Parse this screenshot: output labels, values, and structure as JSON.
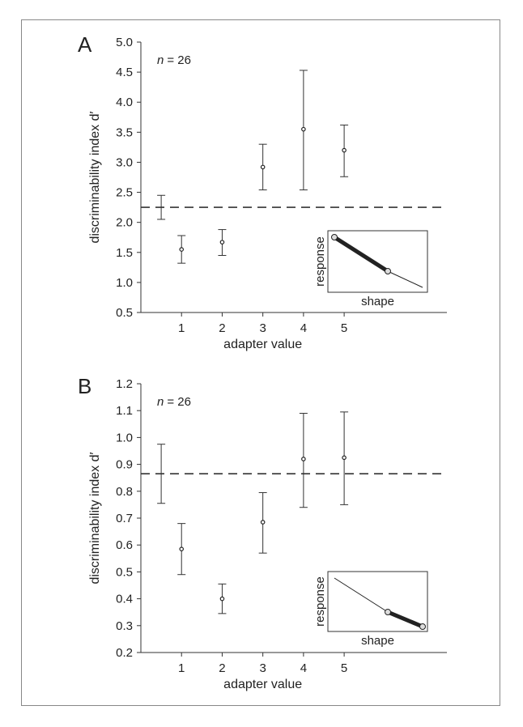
{
  "chart_data": [
    {
      "panel": "A",
      "type": "scatter",
      "annotation_prefix": "n",
      "annotation_value": "= 26",
      "xlabel": "adapter value",
      "ylabel": "discriminability index d′",
      "xticks": [
        "1",
        "2",
        "3",
        "4",
        "5"
      ],
      "yticks": [
        "0.5",
        "1.0",
        "1.5",
        "2.0",
        "2.5",
        "3.0",
        "3.5",
        "4.0",
        "4.5",
        "5.0"
      ],
      "ylim": [
        0.5,
        5.0
      ],
      "xlim": [
        0,
        7
      ],
      "baseline": {
        "x": 0.5,
        "low": 2.05,
        "high": 2.45,
        "line_y": 2.25
      },
      "points": [
        {
          "x": 1,
          "y": 1.55,
          "low": 1.32,
          "high": 1.78
        },
        {
          "x": 2,
          "y": 1.67,
          "low": 1.45,
          "high": 1.88
        },
        {
          "x": 3,
          "y": 2.92,
          "low": 2.54,
          "high": 3.3
        },
        {
          "x": 4,
          "y": 3.55,
          "low": 2.54,
          "high": 4.53
        },
        {
          "x": 5,
          "y": 3.2,
          "low": 2.76,
          "high": 3.62
        }
      ],
      "inset": {
        "xlabel": "shape",
        "ylabel": "response",
        "highlight": "first-segment"
      },
      "grid": false
    },
    {
      "panel": "B",
      "type": "scatter",
      "annotation_prefix": "n",
      "annotation_value": "= 26",
      "xlabel": "adapter value",
      "ylabel": "discriminability index d′",
      "xticks": [
        "1",
        "2",
        "3",
        "4",
        "5"
      ],
      "yticks": [
        "0.2",
        "0.3",
        "0.4",
        "0.5",
        "0.6",
        "0.7",
        "0.8",
        "0.9",
        "1.0",
        "1.1",
        "1.2"
      ],
      "ylim": [
        0.2,
        1.2
      ],
      "xlim": [
        0,
        7
      ],
      "baseline": {
        "x": 0.5,
        "low": 0.755,
        "high": 0.975,
        "line_y": 0.865
      },
      "points": [
        {
          "x": 1,
          "y": 0.585,
          "low": 0.49,
          "high": 0.68
        },
        {
          "x": 2,
          "y": 0.4,
          "low": 0.345,
          "high": 0.455
        },
        {
          "x": 3,
          "y": 0.685,
          "low": 0.57,
          "high": 0.795
        },
        {
          "x": 4,
          "y": 0.92,
          "low": 0.74,
          "high": 1.09
        },
        {
          "x": 5,
          "y": 0.925,
          "low": 0.75,
          "high": 1.095
        }
      ],
      "inset": {
        "xlabel": "shape",
        "ylabel": "response",
        "highlight": "second-segment"
      },
      "grid": false
    }
  ]
}
